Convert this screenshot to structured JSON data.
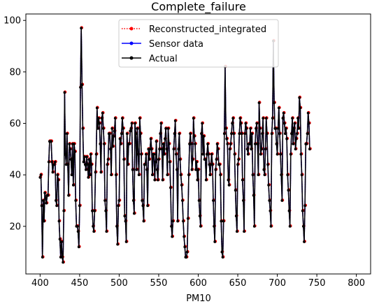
{
  "chart_data": {
    "type": "line",
    "title": "Complete_failure",
    "xlabel": "PM10",
    "ylabel": "",
    "xlim": [
      382,
      818
    ],
    "ylim": [
      1.5,
      102.5
    ],
    "x_ticks": [
      400,
      450,
      500,
      550,
      600,
      650,
      700,
      750,
      800
    ],
    "y_ticks": [
      20,
      40,
      60,
      80,
      100
    ],
    "grid": false,
    "legend_position": "top-center",
    "legend": [
      {
        "name": "Reconstructed_integrated",
        "color": "#ff0000",
        "style": "dotted",
        "marker": "circle"
      },
      {
        "name": "Sensor data",
        "color": "#0000ff",
        "style": "solid",
        "marker": "circle"
      },
      {
        "name": "Actual",
        "color": "#000000",
        "style": "solid",
        "marker": "circle"
      }
    ],
    "series": [
      {
        "name": "Actual",
        "color": "#000000",
        "x_start": 400,
        "x_step": 1,
        "values": [
          39,
          40,
          28,
          8,
          30,
          22,
          33,
          31,
          29,
          32,
          32,
          45,
          53,
          53,
          53,
          45,
          41,
          44,
          44,
          45,
          30,
          28,
          40,
          38,
          22,
          15,
          8,
          14,
          8,
          6,
          26,
          72,
          48,
          44,
          56,
          44,
          32,
          52,
          50,
          46,
          40,
          52,
          36,
          52,
          49,
          30,
          20,
          20,
          18,
          12,
          28,
          74,
          97,
          75,
          58,
          45,
          47,
          44,
          42,
          47,
          44,
          39,
          46,
          40,
          48,
          44,
          26,
          20,
          18,
          26,
          41,
          48,
          66,
          58,
          62,
          60,
          52,
          41,
          62,
          64,
          58,
          52,
          30,
          26,
          18,
          44,
          46,
          56,
          56,
          50,
          40,
          58,
          51,
          55,
          57,
          62,
          40,
          20,
          13,
          28,
          30,
          54,
          52,
          56,
          62,
          58,
          46,
          24,
          22,
          14,
          56,
          44,
          52,
          52,
          57,
          58,
          60,
          42,
          30,
          25,
          60,
          56,
          42,
          58,
          48,
          40,
          62,
          56,
          48,
          30,
          28,
          22,
          44,
          44,
          48,
          42,
          28,
          50,
          46,
          50,
          54,
          50,
          40,
          48,
          48,
          38,
          45,
          53,
          42,
          38,
          46,
          50,
          56,
          60,
          50,
          38,
          52,
          48,
          54,
          58,
          50,
          40,
          58,
          52,
          45,
          35,
          20,
          16,
          22,
          50,
          56,
          61,
          48,
          42,
          22,
          50,
          56,
          46,
          40,
          36,
          30,
          22,
          16,
          12,
          8,
          8,
          10,
          23,
          40,
          52,
          56,
          52,
          42,
          46,
          62,
          55,
          52,
          42,
          45,
          38,
          42,
          30,
          24,
          20,
          56,
          60,
          48,
          55,
          46,
          46,
          38,
          48,
          52,
          48,
          44,
          40,
          44,
          48,
          44,
          30,
          20,
          14,
          42,
          46,
          52,
          50,
          44,
          44,
          40,
          22,
          10,
          8,
          22,
          56,
          82,
          58,
          54,
          52,
          38,
          36,
          50,
          52,
          56,
          60,
          62,
          56,
          48,
          34,
          24,
          18,
          44,
          46,
          56,
          62,
          60,
          56,
          38,
          30,
          18,
          56,
          60,
          58,
          50,
          48,
          52,
          52,
          58,
          50,
          56,
          40,
          32,
          20,
          52,
          58,
          60,
          52,
          40,
          68,
          58,
          48,
          50,
          56,
          62,
          42,
          40,
          50,
          62,
          56,
          44,
          36,
          30,
          26,
          20,
          56,
          62,
          92,
          68,
          58,
          58,
          52,
          48,
          58,
          66,
          56,
          48,
          40,
          30,
          62,
          64,
          60,
          56,
          58,
          54,
          40,
          34,
          26,
          20,
          48,
          56,
          62,
          52,
          58,
          60,
          50,
          54,
          56,
          62,
          58,
          70,
          66,
          48,
          40,
          26,
          20,
          14,
          28,
          52,
          52,
          56,
          64,
          60,
          50
        ]
      }
    ]
  }
}
